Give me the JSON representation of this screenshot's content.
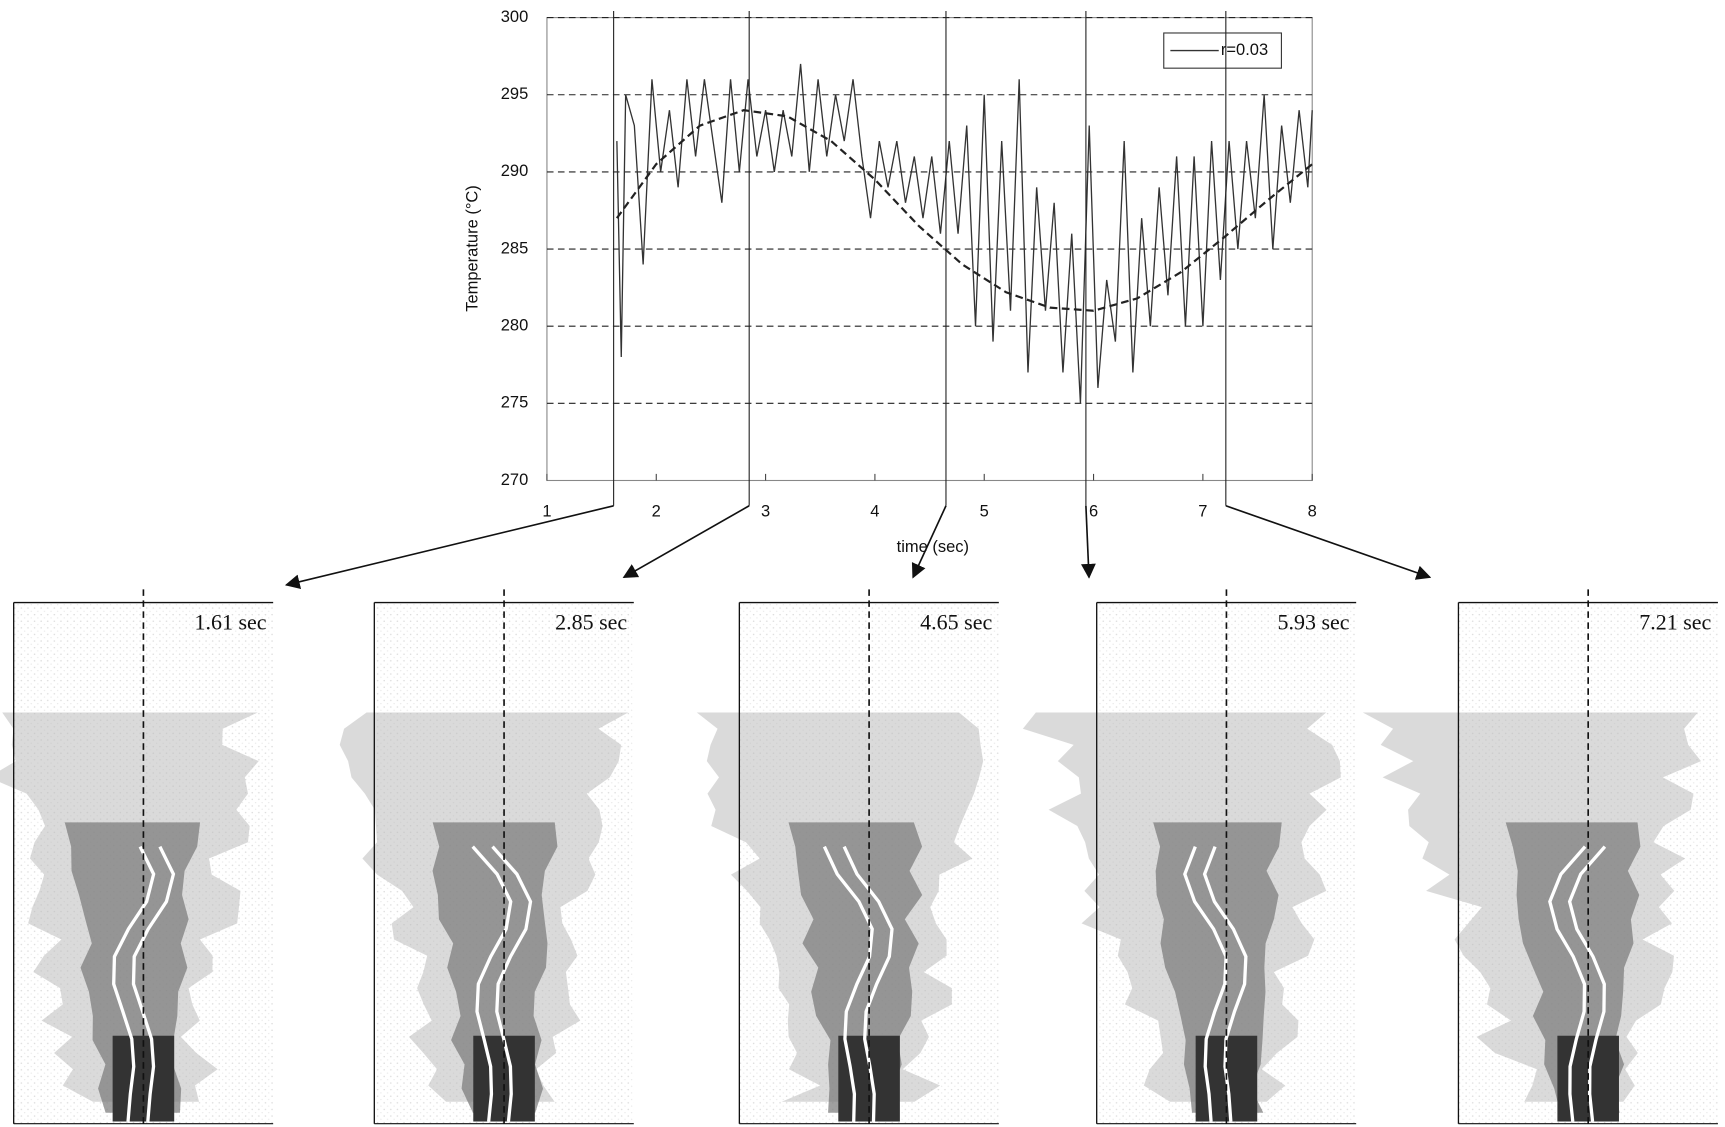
{
  "chart_data": {
    "type": "line",
    "xlabel": "time (sec)",
    "ylabel": "Temperature (°C)",
    "xlim": [
      1,
      8
    ],
    "ylim": [
      270,
      300
    ],
    "xticks": [
      1,
      2,
      3,
      4,
      5,
      6,
      7,
      8
    ],
    "yticks": [
      270,
      275,
      280,
      285,
      290,
      295,
      300
    ],
    "grid": true,
    "legend": "upper right",
    "series": [
      {
        "name": "r=0.03",
        "color": "#333333",
        "style": "solid",
        "x": [
          1.64,
          1.68,
          1.72,
          1.8,
          1.88,
          1.96,
          2.04,
          2.12,
          2.2,
          2.28,
          2.36,
          2.44,
          2.52,
          2.6,
          2.68,
          2.76,
          2.84,
          2.92,
          3.0,
          3.08,
          3.16,
          3.24,
          3.32,
          3.4,
          3.48,
          3.56,
          3.64,
          3.72,
          3.8,
          3.88,
          3.96,
          4.04,
          4.12,
          4.2,
          4.28,
          4.36,
          4.44,
          4.52,
          4.6,
          4.68,
          4.76,
          4.84,
          4.92,
          5.0,
          5.08,
          5.16,
          5.24,
          5.32,
          5.4,
          5.48,
          5.56,
          5.64,
          5.72,
          5.8,
          5.88,
          5.96,
          6.04,
          6.12,
          6.2,
          6.28,
          6.36,
          6.44,
          6.52,
          6.6,
          6.68,
          6.76,
          6.84,
          6.92,
          7.0,
          7.08,
          7.16,
          7.24,
          7.32,
          7.4,
          7.48,
          7.56,
          7.64,
          7.72,
          7.8,
          7.88,
          7.96,
          8.0
        ],
        "values": [
          292,
          278,
          295,
          293,
          284,
          296,
          290,
          294,
          289,
          296,
          291,
          296,
          292,
          288,
          296,
          290,
          296,
          291,
          294,
          290,
          294,
          291,
          297,
          290,
          296,
          291,
          295,
          292,
          296,
          291,
          287,
          292,
          289,
          292,
          288,
          291,
          287,
          291,
          286,
          292,
          286,
          293,
          280,
          295,
          279,
          292,
          281,
          296,
          277,
          289,
          281,
          288,
          277,
          286,
          275,
          293,
          276,
          283,
          279,
          292,
          277,
          287,
          280,
          289,
          282,
          291,
          280,
          291,
          280,
          292,
          283,
          292,
          285,
          292,
          287,
          295,
          285,
          293,
          288,
          294,
          289,
          294
        ]
      },
      {
        "color": "#222222",
        "style": "dashed",
        "x": [
          1.64,
          2,
          2.4,
          2.8,
          3.2,
          3.6,
          4,
          4.4,
          4.8,
          5.2,
          5.6,
          6,
          6.4,
          6.8,
          7.2,
          7.6,
          8
        ],
        "values": [
          287,
          290.5,
          293,
          294,
          293.6,
          292,
          289.5,
          286.5,
          284,
          282.2,
          281.2,
          281,
          281.8,
          283.5,
          285.8,
          288.2,
          290.5
        ]
      }
    ],
    "markers": {
      "values": [
        1.61,
        2.85,
        4.65,
        5.93,
        7.21
      ],
      "value_labels": [
        "1.61 sec",
        "2.85 sec",
        "4.65 sec",
        "5.93 sec",
        "7.21 sec"
      ]
    }
  }
}
